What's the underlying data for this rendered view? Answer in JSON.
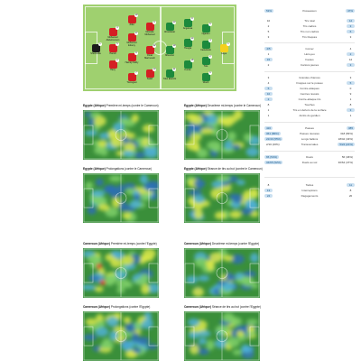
{
  "lineup": {
    "home_players": [
      {
        "name": "Shenouda",
        "number": "1",
        "kind": "gk-red"
      },
      {
        "name": "Mohamed Abdelmonem",
        "number": "3",
        "kind": "red"
      },
      {
        "name": "Hamdi",
        "number": "5",
        "kind": "red"
      },
      {
        "name": "Hany",
        "number": "2",
        "kind": "red"
      },
      {
        "name": "Attia",
        "number": "19",
        "kind": "red"
      },
      {
        "name": "Mohamed Elneny",
        "number": "17",
        "kind": "red"
      },
      {
        "name": "Hamdy Fathy",
        "number": "8",
        "kind": "red"
      },
      {
        "name": "Trezeguet",
        "number": "7",
        "kind": "red"
      },
      {
        "name": "Mostafa Mohamed",
        "number": "9",
        "kind": "red"
      },
      {
        "name": "Omar Marmoush",
        "number": "22",
        "kind": "red"
      },
      {
        "name": "Salah",
        "number": "10",
        "kind": "red"
      }
    ],
    "away_players": [
      {
        "name": "Gaya",
        "number": "1",
        "kind": "gk-green"
      },
      {
        "name": "Ngadeu",
        "number": "5",
        "kind": "green"
      },
      {
        "name": "Castelletto",
        "number": "4",
        "kind": "green"
      },
      {
        "name": "Tolo",
        "number": "2",
        "kind": "green"
      },
      {
        "name": "Wooh",
        "number": "6",
        "kind": "green"
      },
      {
        "name": "Anguissa",
        "number": "8",
        "kind": "green"
      },
      {
        "name": "Hongla",
        "number": "14",
        "kind": "green"
      },
      {
        "name": "Kunde",
        "number": "18",
        "kind": "green"
      },
      {
        "name": "Aboubakar",
        "number": "10",
        "kind": "green"
      },
      {
        "name": "Mbeumo",
        "number": "19",
        "kind": "green"
      },
      {
        "name": "Toko Ekambi",
        "number": "11",
        "kind": "green"
      }
    ]
  },
  "stats": [
    {
      "left": "53%",
      "label": "Possession",
      "right": "47%",
      "hl": "both"
    },
    {
      "left": "10",
      "label": "Tirs total",
      "right": "12",
      "hl": "right"
    },
    {
      "left": "2",
      "label": "Tirs cadrés",
      "right": "3",
      "hl": "right"
    },
    {
      "left": "5",
      "label": "Tirs non cadrés",
      "right": "6",
      "hl": "right"
    },
    {
      "left": "3",
      "label": "Tirs bloqués",
      "right": "3",
      "hl": "none"
    },
    {
      "left": "4/5",
      "label": "Corner",
      "right": "4",
      "hl": "left"
    },
    {
      "left": "1",
      "label": "Hors-jeu",
      "right": "2",
      "hl": "right"
    },
    {
      "left": "15",
      "label": "Fautes",
      "right": "12",
      "hl": "left"
    },
    {
      "left": "2",
      "label": "Cartons jaunes",
      "right": "3",
      "hl": "right"
    },
    {
      "left": "3",
      "label": "Grandes chances",
      "right": "3",
      "hl": "none"
    },
    {
      "left": "4",
      "label": "Frappes sur le poteau",
      "right": "5",
      "hl": "right"
    },
    {
      "left": "5",
      "label": "Contre-attaques",
      "right": "0",
      "hl": "left"
    },
    {
      "left": "10",
      "label": "Centres réussis",
      "right": "9",
      "hl": "left"
    },
    {
      "left": "2",
      "label": "Contre-attaque tirs",
      "right": "1",
      "hl": "left"
    },
    {
      "left": "8",
      "label": "Touches",
      "right": "8",
      "hl": "none"
    },
    {
      "left": "1",
      "label": "Tirs en dehors de la surface",
      "right": "3",
      "hl": "right"
    },
    {
      "left": "1",
      "label": "Arrêts du gardien",
      "right": "1",
      "hl": "none"
    },
    {
      "left": "420",
      "label": "Passes",
      "right": "385",
      "hl": "both"
    },
    {
      "left": "361 (86%)",
      "label": "Passes réussies",
      "right": "318 (83%)",
      "hl": "left"
    },
    {
      "left": "22/40 (55%)",
      "label": "Longs ballons",
      "right": "18/42 (43%)",
      "hl": "left"
    },
    {
      "left": "2/10 (20%)",
      "label": "Transversales",
      "right": "5/24 (21%)",
      "hl": "right"
    },
    {
      "left": "65 (54%)",
      "label": "Duels",
      "right": "56 (46%)",
      "hl": "left"
    },
    {
      "left": "34/65 (52%)",
      "label": "Duels au sol",
      "right": "30/64 (47%)",
      "hl": "left"
    },
    {
      "left": "8",
      "label": "Tacles",
      "right": "11",
      "hl": "right"
    },
    {
      "left": "13",
      "label": "Interceptions",
      "right": "8",
      "hl": "left"
    },
    {
      "left": "24",
      "label": "Dégagements",
      "right": "20",
      "hl": "left"
    }
  ],
  "heatmaps": [
    {
      "team": "Egypte (Afrique)",
      "caption": "Première mi-temps (contre le Cameroun)"
    },
    {
      "team": "Egypte (Afrique)",
      "caption": "Deuxième mi-temps (contre le Cameroun)"
    },
    {
      "team": "Egypte (Afrique)",
      "caption": "Prolongations (contre le Cameroun)"
    },
    {
      "team": "Egypte (Afrique)",
      "caption": "Séance de tirs au but (contre le Cameroun)"
    },
    {
      "team": "Cameroun (Afrique)",
      "caption": "Première mi-temps (contre l'Egypte)"
    },
    {
      "team": "Cameroun (Afrique)",
      "caption": "Deuxième mi-temps (contre l'Egypte)"
    },
    {
      "team": "Cameroun (Afrique)",
      "caption": "Prolongations (contre l'Egypte)"
    },
    {
      "team": "Cameroun (Afrique)",
      "caption": "Séance de tirs au but (contre l'Egypte)"
    }
  ],
  "colors": {
    "home": "#d41f23",
    "away": "#1c8a3c",
    "pitch": "#9fd06f",
    "highlight": "#c9dff0"
  }
}
